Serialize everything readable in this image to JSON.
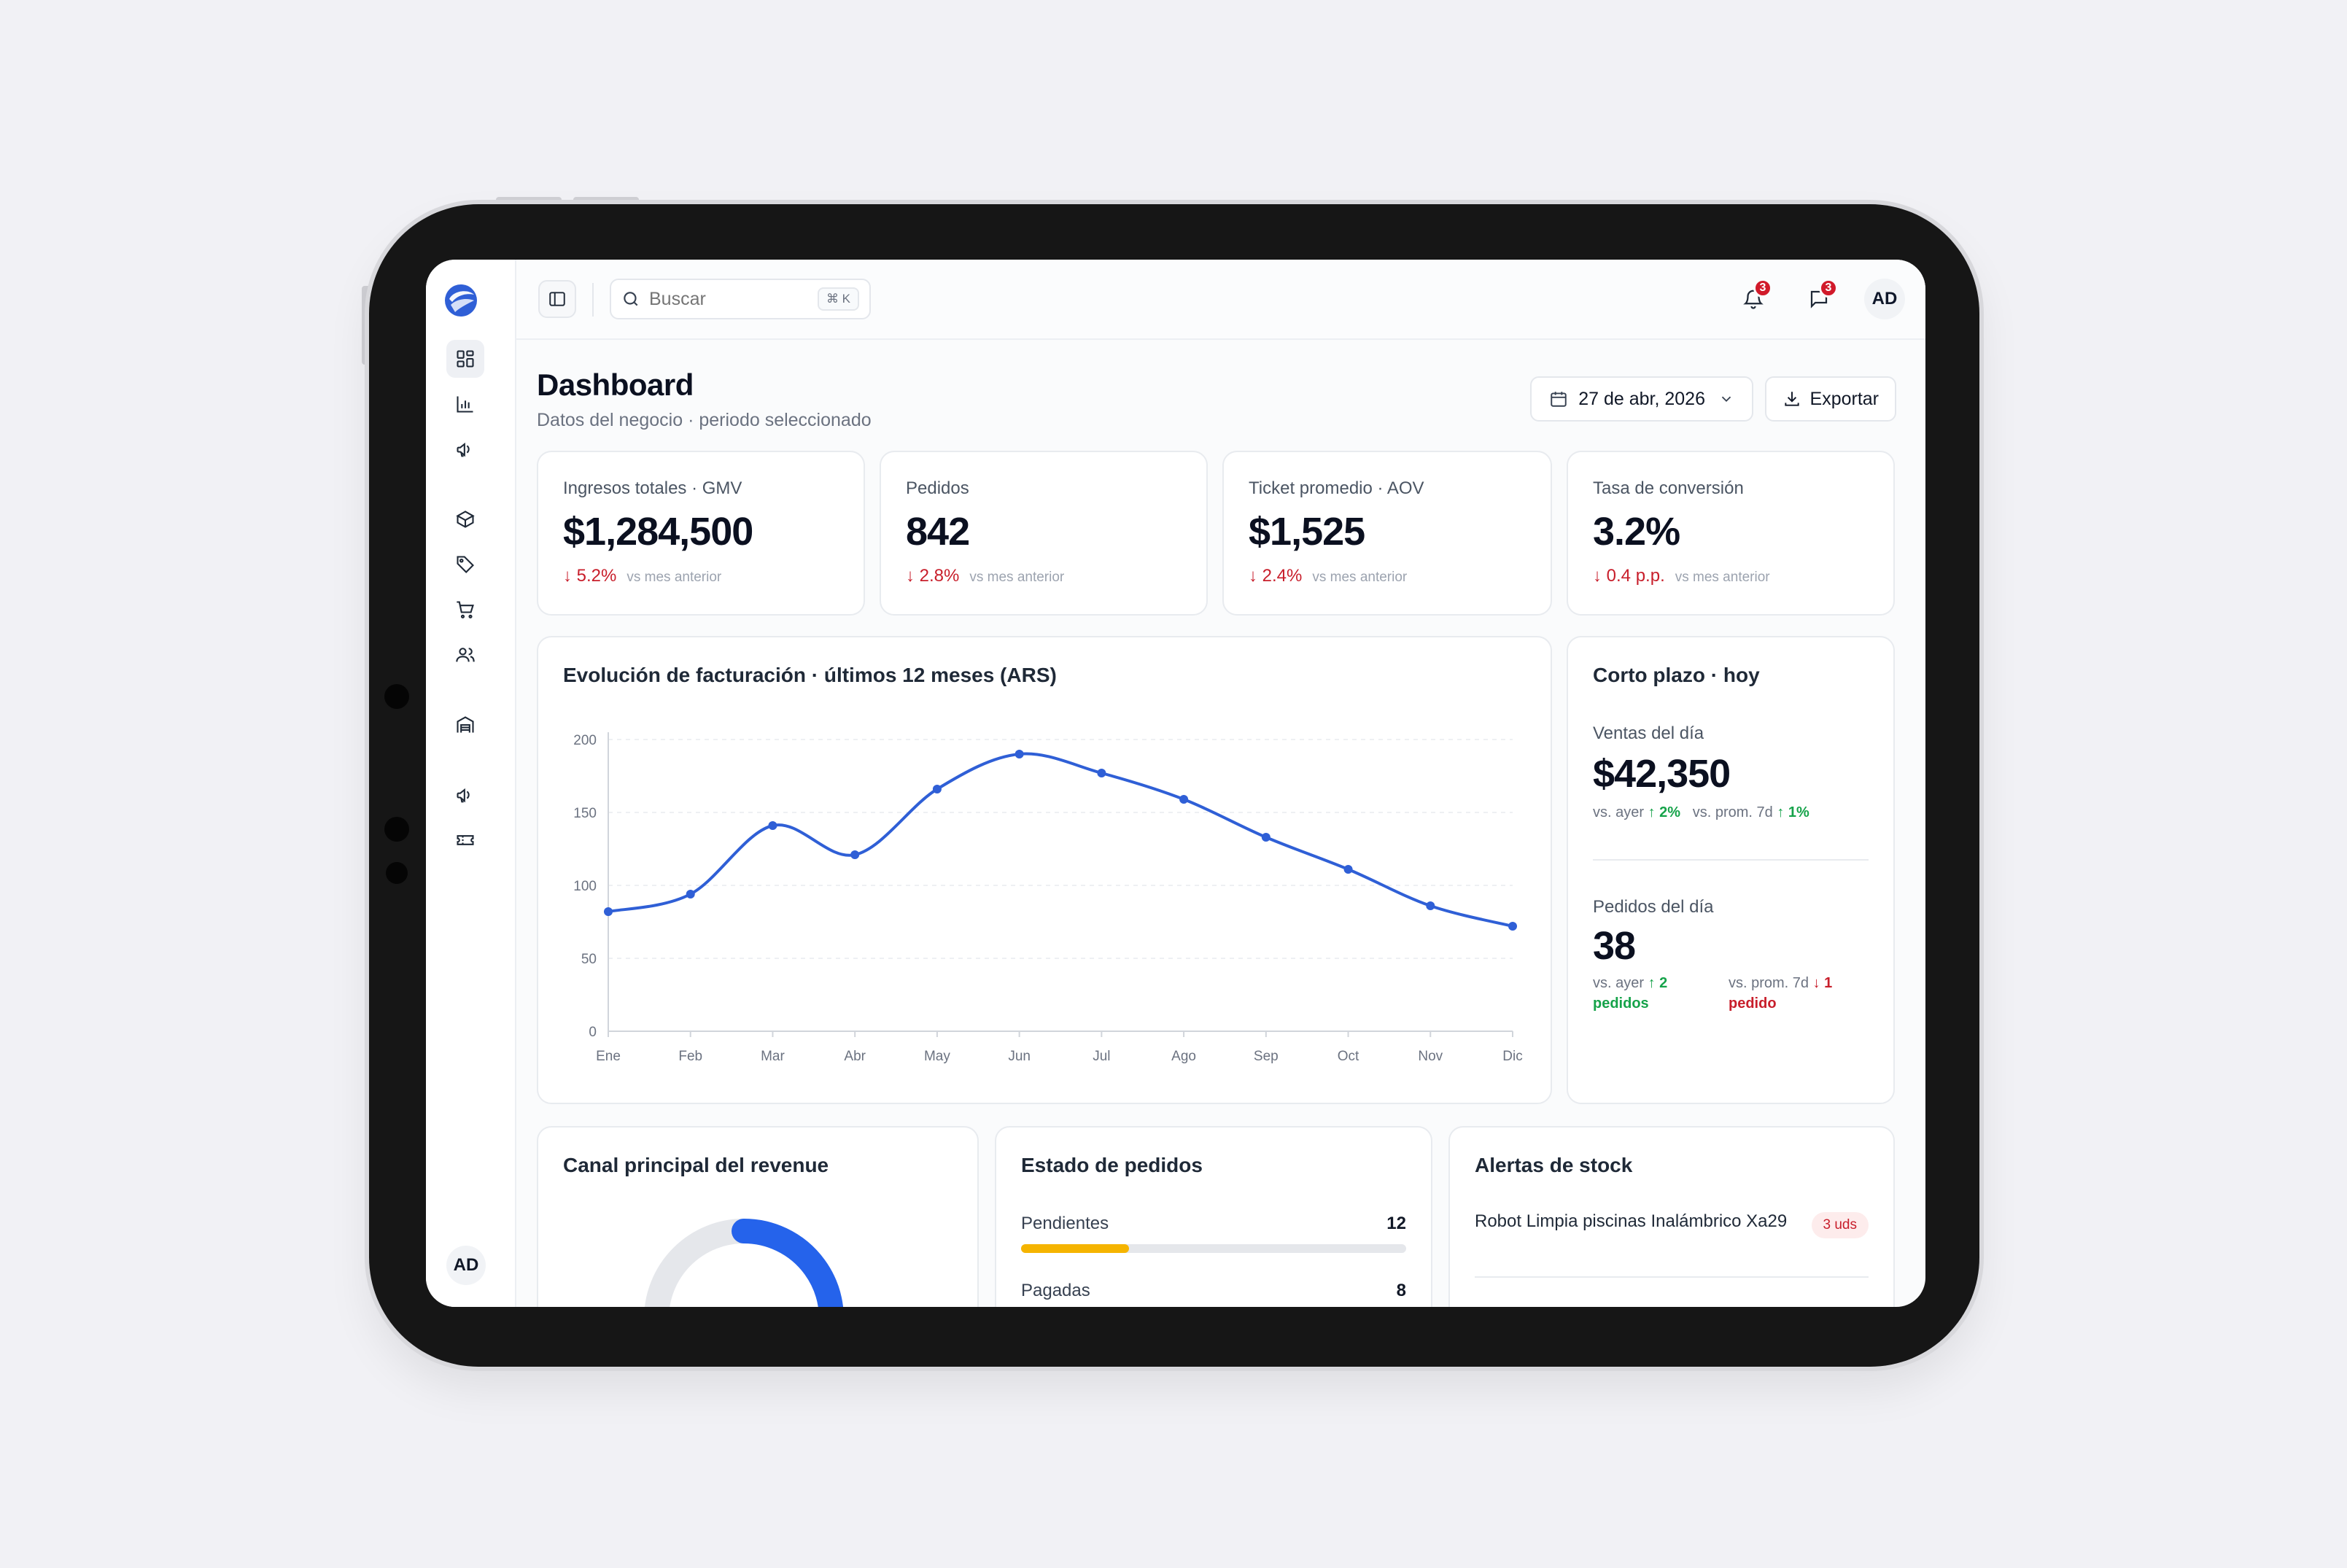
{
  "app": {
    "logo_icon": "logo-icon",
    "accent": "#2f5fd6"
  },
  "sidebar": {
    "items": [
      {
        "name": "dashboard",
        "icon": "grid-icon"
      },
      {
        "name": "analytics",
        "icon": "bar-chart-icon"
      },
      {
        "name": "marketing",
        "icon": "megaphone-icon"
      },
      {
        "name": "products",
        "icon": "box-icon"
      },
      {
        "name": "tags",
        "icon": "tag-icon"
      },
      {
        "name": "orders",
        "icon": "cart-icon"
      },
      {
        "name": "customers",
        "icon": "users-icon"
      },
      {
        "name": "warehouse",
        "icon": "warehouse-icon"
      },
      {
        "name": "campaigns",
        "icon": "megaphone-icon"
      },
      {
        "name": "coupons",
        "icon": "ticket-icon"
      }
    ],
    "user_initials": "AD"
  },
  "topbar": {
    "search_placeholder": "Buscar",
    "search_shortcut": "⌘ K",
    "notifications_count": "3",
    "messages_count": "3",
    "user_initials": "AD"
  },
  "header": {
    "title": "Dashboard",
    "subtitle": "Datos del negocio · periodo seleccionado",
    "date": "27 de abr, 2026",
    "export_label": "Exportar"
  },
  "kpis": [
    {
      "label": "Ingresos totales · GMV",
      "value": "$1,284,500",
      "delta": "↓ 5.2%",
      "vs": "vs mes anterior"
    },
    {
      "label": "Pedidos",
      "value": "842",
      "delta": "↓ 2.8%",
      "vs": "vs mes anterior"
    },
    {
      "label": "Ticket promedio · AOV",
      "value": "$1,525",
      "delta": "↓ 2.4%",
      "vs": "vs mes anterior"
    },
    {
      "label": "Tasa de conversión",
      "value": "3.2%",
      "delta": "↓ 0.4 p.p.",
      "vs": "vs mes anterior"
    }
  ],
  "chart_data": {
    "type": "line",
    "title": "Evolución de facturación · últimos 12 meses (ARS)",
    "categories": [
      "Ene",
      "Feb",
      "Mar",
      "Abr",
      "May",
      "Jun",
      "Jul",
      "Ago",
      "Sep",
      "Oct",
      "Nov",
      "Dic"
    ],
    "values": [
      82,
      94,
      141,
      121,
      166,
      190,
      177,
      159,
      133,
      111,
      86,
      72
    ],
    "ylim": [
      0,
      200
    ],
    "yticks": [
      0,
      50,
      100,
      150,
      200
    ],
    "grid": true,
    "color": "#2f5fd6"
  },
  "short_term": {
    "title": "Corto plazo · hoy",
    "sales_label": "Ventas del día",
    "sales_value": "$42,350",
    "sales_vs_yesterday": "vs. ayer",
    "sales_vs_yesterday_delta": "↑ 2%",
    "sales_vs_avg": "vs. prom. 7d",
    "sales_vs_avg_delta": "↑ 1%",
    "orders_label": "Pedidos del día",
    "orders_value": "38",
    "orders_vs_yesterday": "vs. ayer",
    "orders_vs_yesterday_delta": "↑ 2 pedidos",
    "orders_vs_avg": "vs. prom. 7d",
    "orders_vs_avg_delta": "↓ 1 pedido"
  },
  "revenue_channel": {
    "title": "Canal principal del revenue",
    "share": 0.3
  },
  "order_status": {
    "title": "Estado de pedidos",
    "rows": [
      {
        "label": "Pendientes",
        "value": "12",
        "fraction": 0.28
      },
      {
        "label": "Pagadas",
        "value": "8"
      }
    ]
  },
  "stock_alerts": {
    "title": "Alertas de stock",
    "items": [
      {
        "name": "Robot Limpia piscinas Inalámbrico Xa29",
        "badge": "3 uds"
      }
    ]
  }
}
